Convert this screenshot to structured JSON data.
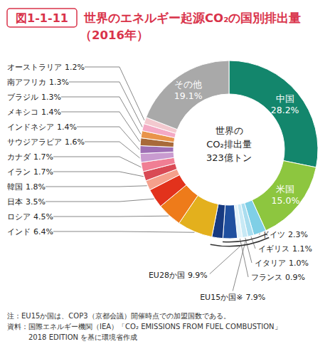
{
  "chart_data": {
    "type": "donut",
    "figure_label": "図1-1-11",
    "title": "世界のエネルギー起源CO₂の国別排出量",
    "subtitle": "（2016年）",
    "center_text": [
      "世界の",
      "CO₂排出量",
      "323億トン"
    ],
    "categories": [
      "中国",
      "米国",
      "ドイツ",
      "イギリス",
      "イタリア",
      "フランス",
      null,
      null,
      "インド",
      "ロシア",
      "日本",
      "韓国",
      "イラン",
      "カナダ",
      "サウジアラビア",
      "インドネシア",
      "メキシコ",
      "ブラジル",
      "南アフリカ",
      "オーストラリア",
      "その他"
    ],
    "values": [
      28.2,
      15.0,
      2.3,
      1.1,
      1.0,
      0.9,
      2.6,
      2.0,
      6.4,
      4.5,
      3.5,
      1.8,
      1.7,
      1.7,
      1.6,
      1.4,
      1.4,
      1.3,
      1.3,
      1.2,
      19.1
    ],
    "value_labels": [
      "28.2%",
      "15.0%",
      "2.3%",
      "1.1%",
      "1.0%",
      "0.9%",
      null,
      null,
      "6.4%",
      "4.5%",
      "3.5%",
      "1.8%",
      "1.7%",
      "1.7%",
      "1.6%",
      "1.4%",
      "1.4%",
      "1.3%",
      "1.3%",
      "1.2%",
      "19.1%"
    ],
    "colors": [
      "#13866c",
      "#8dc63f",
      "#7fcfe6",
      "#a9ddef",
      "#c8e9f5",
      "#e3f3fa",
      "#1f4f9f",
      "#173a80",
      "#e3b01d",
      "#ee7b1a",
      "#e2321c",
      "#f5a08c",
      "#d94a55",
      "#f07e94",
      "#c99bd0",
      "#9f6fb5",
      "#a86a3a",
      "#e9944a",
      "#f4a9c4",
      "#f3c9cf",
      "#a9a9a9"
    ],
    "data_labels": true,
    "groups": [
      {
        "name": "EU15か国※",
        "value": 7.9,
        "value_label": "7.9%",
        "members": [
          2,
          3,
          4,
          5,
          6
        ]
      },
      {
        "name": "EU28か国",
        "value": 9.9,
        "value_label": "9.9%",
        "members": [
          2,
          3,
          4,
          5,
          6,
          7
        ]
      }
    ],
    "notes": [
      "注：EU15か国は、COP3（京都会議）開催時点での加盟国数である。",
      "資料：国際エネルギー機関（IEA）「CO₂ EMISSIONS FROM FUEL COMBUSTION」",
      "2018 EDITION を基に環境省作成"
    ]
  }
}
